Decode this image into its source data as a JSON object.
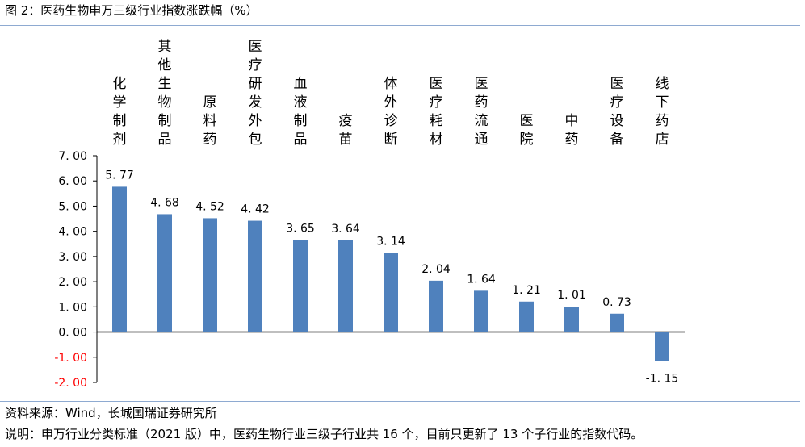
{
  "figure": {
    "title": "图 2：医药生物申万三级行业指数涨跌幅（%）",
    "source": "资料来源：Wind，长城国瑞证券研究所",
    "note": "说明：申万行业分类标准（2021 版）中，医药生物行业三级子行业共 16 个，目前只更新了 13 个子行业的指数代码。"
  },
  "chart_data": {
    "type": "bar",
    "title": "图 2：医药生物申万三级行业指数涨跌幅（%）",
    "xlabel": "",
    "ylabel": "",
    "categories": [
      "化学制剂",
      "其他生物制品",
      "原料药",
      "医疗研发外包",
      "血液制品",
      "疫苗",
      "体外诊断",
      "医疗耗材",
      "医药流通",
      "医院",
      "中药",
      "医疗设备",
      "线下药店"
    ],
    "values": [
      5.77,
      4.68,
      4.52,
      4.42,
      3.65,
      3.64,
      3.14,
      2.04,
      1.64,
      1.21,
      1.01,
      0.73,
      -1.15
    ],
    "value_labels": [
      "5. 77",
      "4. 68",
      "4. 52",
      "4. 42",
      "3. 65",
      "3. 64",
      "3. 14",
      "2. 04",
      "1. 64",
      "1. 21",
      "1. 01",
      "0. 73",
      "-1. 15"
    ],
    "yticks": [
      7,
      6,
      5,
      4,
      3,
      2,
      1,
      0,
      -1,
      -2
    ],
    "ytick_labels": [
      "7. 00",
      "6. 00",
      "5. 00",
      "4. 00",
      "3. 00",
      "2. 00",
      "1. 00",
      "0. 00",
      "-1. 00",
      "-2. 00"
    ],
    "ylim": [
      -2,
      7
    ],
    "grid": false,
    "legend": "none",
    "category_label_position": "top",
    "colors": {
      "bar": "#4f81bd",
      "negative_tick_label": "#ff0000",
      "axis": "#000000",
      "rule": "#8eaad1"
    }
  }
}
